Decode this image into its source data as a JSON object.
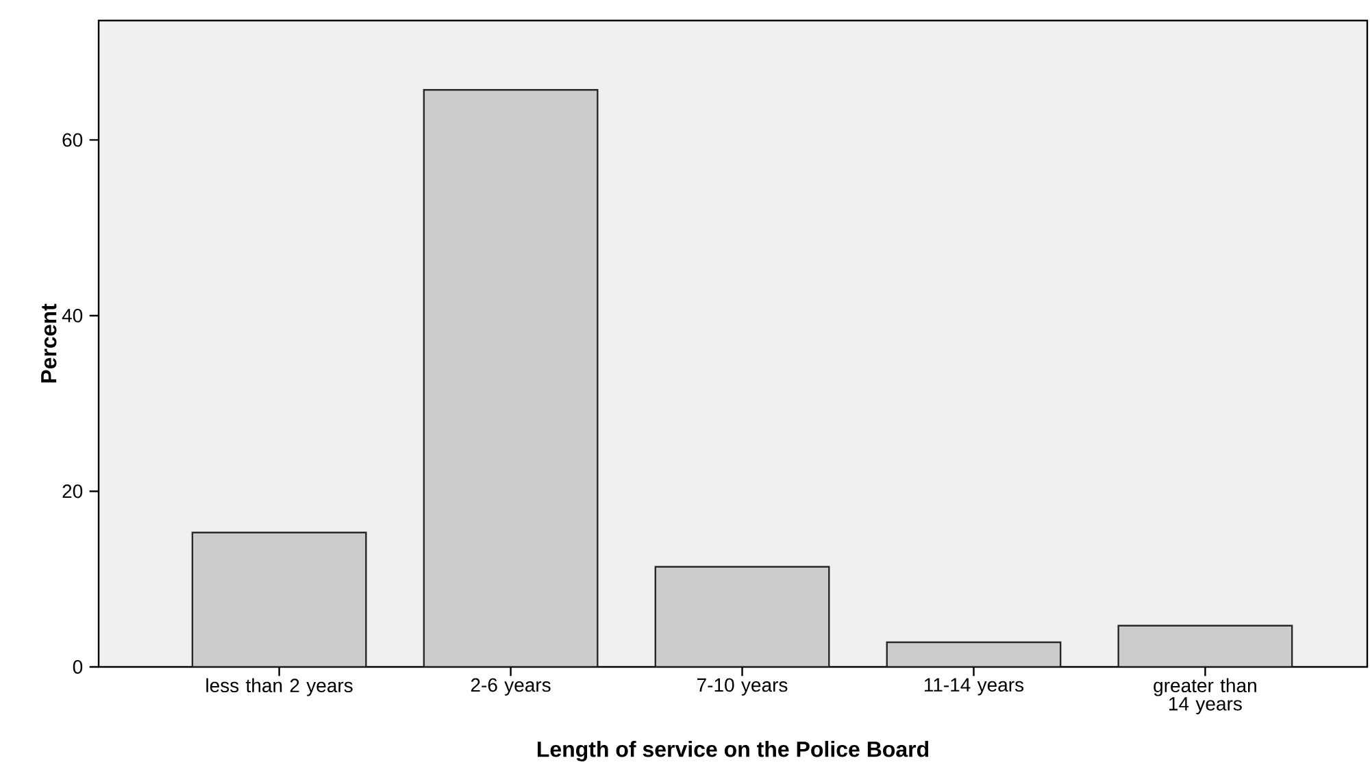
{
  "chart_data": {
    "type": "bar",
    "xlabel": "Length of service on the Police Board",
    "ylabel": "Percent",
    "categories": [
      "less than 2 years",
      "2-6 years",
      "7-10 years",
      "11-14 years",
      "greater than 14 years"
    ],
    "values": [
      15.3,
      65.7,
      11.4,
      2.8,
      4.7
    ],
    "color": "#cccccc",
    "ylim": [
      0,
      73.6
    ],
    "yticks": [
      0,
      20,
      40,
      60
    ],
    "grid": false
  }
}
